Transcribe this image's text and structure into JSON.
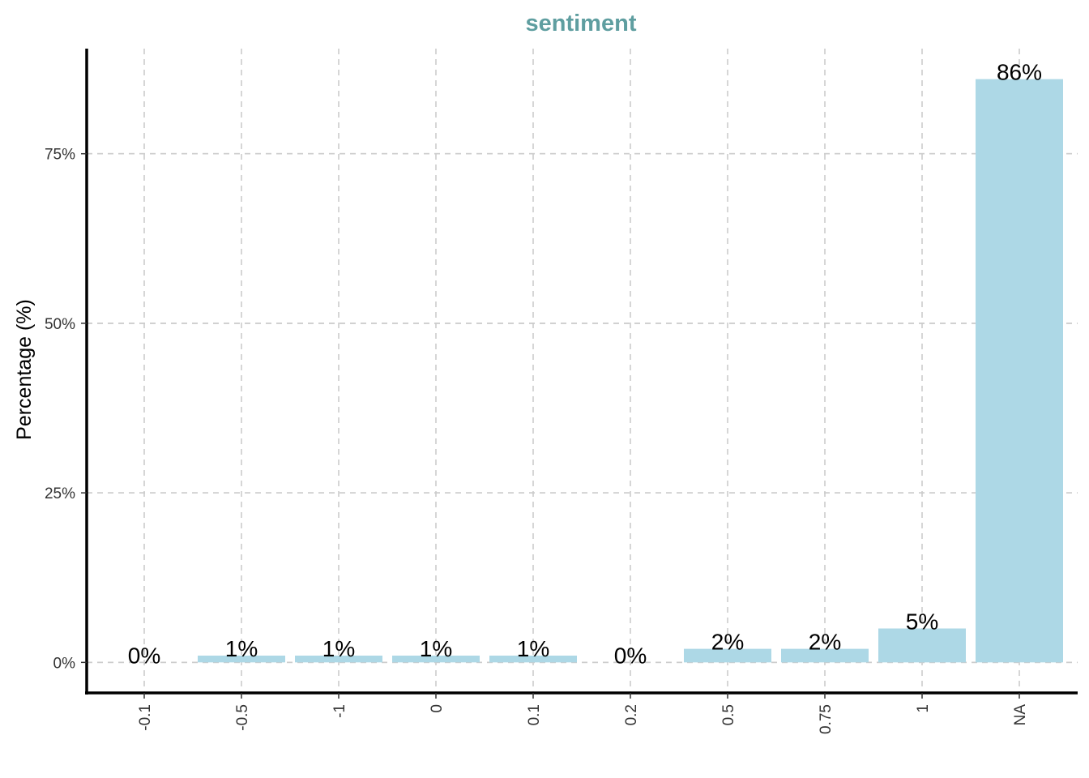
{
  "chart_data": {
    "type": "bar",
    "title": "sentiment",
    "xlabel": "",
    "ylabel": "Percentage (%)",
    "categories": [
      "-0.1",
      "-0.5",
      "-1",
      "0",
      "0.1",
      "0.2",
      "0.5",
      "0.75",
      "1",
      "NA"
    ],
    "values": [
      0,
      1,
      1,
      1,
      1,
      0,
      2,
      2,
      5,
      86
    ],
    "data_labels": [
      "0%",
      "1%",
      "1%",
      "1%",
      "1%",
      "0%",
      "2%",
      "2%",
      "5%",
      "86%"
    ],
    "ylim": [
      -4.5,
      90.5
    ],
    "yticks": [
      0,
      25,
      50,
      75
    ],
    "ytick_labels": [
      "0%",
      "25%",
      "50%",
      "75%"
    ],
    "grid": true,
    "grid_style": "dashed",
    "legend": "none",
    "colors": {
      "bar": "#add8e6",
      "title": "#5f9ea0",
      "grid": "#cccccc",
      "axis": "#000000"
    }
  }
}
